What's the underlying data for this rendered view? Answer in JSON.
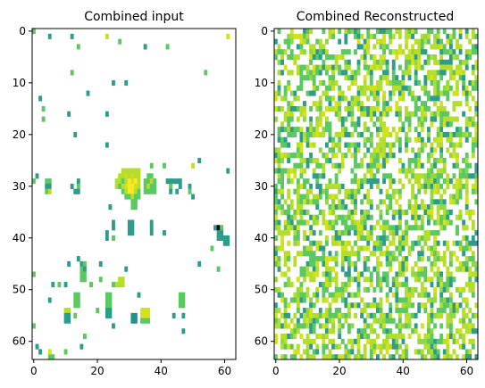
{
  "chart_data": [
    {
      "type": "heatmap",
      "title": "Combined input",
      "rows": 64,
      "cols": 64,
      "background": "#ffffff",
      "colormap": "viridis",
      "x_ticks": [
        0,
        20,
        40,
        60
      ],
      "y_ticks": [
        0,
        10,
        20,
        30,
        40,
        50,
        60
      ],
      "cells": [
        [
          0,
          0,
          "#5bc862"
        ],
        [
          5,
          1,
          "#2e9c8a"
        ],
        [
          12,
          1,
          "#2e9c8a"
        ],
        [
          23,
          1,
          "#c8dc2a"
        ],
        [
          27,
          2,
          "#5bc862"
        ],
        [
          14,
          3,
          "#5bc862"
        ],
        [
          35,
          3,
          "#2e9c8a"
        ],
        [
          42,
          3,
          "#5bc862"
        ],
        [
          61,
          1,
          "#d2e21b"
        ],
        [
          12,
          8,
          "#5bc862"
        ],
        [
          54,
          8,
          "#5bc862"
        ],
        [
          25,
          10,
          "#2e9c8a"
        ],
        [
          29,
          10,
          "#2e9c8a"
        ],
        [
          17,
          12,
          "#2e9c8a"
        ],
        [
          2,
          13,
          "#2e9c8a"
        ],
        [
          3,
          15,
          "#5bc862"
        ],
        [
          11,
          16,
          "#2e9c8a"
        ],
        [
          23,
          16,
          "#2e9c8a"
        ],
        [
          3,
          17,
          "#5bc862"
        ],
        [
          13,
          20,
          "#2e9c8a"
        ],
        [
          23,
          22,
          "#2e9c8a"
        ],
        [
          52,
          25,
          "#2e9c8a"
        ],
        [
          50,
          26,
          "#c8dc2a"
        ],
        [
          41,
          26,
          "#5bc862"
        ],
        [
          37,
          26,
          "#5bc862"
        ],
        [
          1,
          28,
          "#2e9c8a"
        ],
        [
          61,
          27,
          "#2e9c8a"
        ],
        [
          0,
          29,
          "#5bc862"
        ],
        [
          28,
          27,
          "#b5de2b"
        ],
        [
          29,
          27,
          "#b5de2b"
        ],
        [
          30,
          27,
          "#b5de2b"
        ],
        [
          31,
          27,
          "#b5de2b"
        ],
        [
          32,
          27,
          "#b5de2b"
        ],
        [
          33,
          27,
          "#b5de2b"
        ],
        [
          27,
          28,
          "#b5de2b"
        ],
        [
          28,
          28,
          "#b5de2b"
        ],
        [
          29,
          28,
          "#c8dc2a"
        ],
        [
          30,
          28,
          "#b5de2b"
        ],
        [
          31,
          28,
          "#c8dc2a"
        ],
        [
          32,
          28,
          "#b5de2b"
        ],
        [
          33,
          28,
          "#b5de2b"
        ],
        [
          36,
          28,
          "#5bc862"
        ],
        [
          37,
          28,
          "#5bc862"
        ],
        [
          26,
          29,
          "#b5de2b"
        ],
        [
          27,
          29,
          "#b5de2b"
        ],
        [
          28,
          29,
          "#5bc862"
        ],
        [
          29,
          29,
          "#b5de2b"
        ],
        [
          30,
          29,
          "#fde725"
        ],
        [
          31,
          29,
          "#d2e21b"
        ],
        [
          32,
          29,
          "#fde725"
        ],
        [
          33,
          29,
          "#b5de2b"
        ],
        [
          35,
          29,
          "#5bc862"
        ],
        [
          36,
          29,
          "#5bc862"
        ],
        [
          37,
          29,
          "#b5de2b"
        ],
        [
          38,
          29,
          "#5bc862"
        ],
        [
          26,
          30,
          "#b5de2b"
        ],
        [
          27,
          30,
          "#5bc862"
        ],
        [
          28,
          30,
          "#b5de2b"
        ],
        [
          29,
          30,
          "#d2e21b"
        ],
        [
          30,
          30,
          "#fde725"
        ],
        [
          31,
          30,
          "#fde725"
        ],
        [
          32,
          30,
          "#d2e21b"
        ],
        [
          33,
          30,
          "#b5de2b"
        ],
        [
          35,
          30,
          "#5bc862"
        ],
        [
          36,
          30,
          "#b5de2b"
        ],
        [
          37,
          30,
          "#5bc862"
        ],
        [
          38,
          30,
          "#5bc862"
        ],
        [
          42,
          29,
          "#2e9c8a"
        ],
        [
          43,
          29,
          "#2e9c8a"
        ],
        [
          44,
          29,
          "#2e9c8a"
        ],
        [
          45,
          29,
          "#2e9c8a"
        ],
        [
          46,
          29,
          "#2e9c8a"
        ],
        [
          4,
          29,
          "#5bc862"
        ],
        [
          5,
          29,
          "#5bc862"
        ],
        [
          4,
          30,
          "#2e9c8a"
        ],
        [
          5,
          30,
          "#2e9c8a"
        ],
        [
          4,
          31,
          "#5bc862"
        ],
        [
          5,
          31,
          "#b5de2b"
        ],
        [
          14,
          29,
          "#2e9c8a"
        ],
        [
          12,
          30,
          "#2e9c8a"
        ],
        [
          14,
          30,
          "#5bc862"
        ],
        [
          14,
          31,
          "#2e9c8a"
        ],
        [
          13,
          31,
          "#2e9c8a"
        ],
        [
          28,
          31,
          "#5bc862"
        ],
        [
          29,
          31,
          "#b5de2b"
        ],
        [
          30,
          31,
          "#fde725"
        ],
        [
          31,
          31,
          "#fde725"
        ],
        [
          32,
          31,
          "#b5de2b"
        ],
        [
          33,
          31,
          "#5bc862"
        ],
        [
          35,
          31,
          "#5bc862"
        ],
        [
          36,
          31,
          "#5bc862"
        ],
        [
          37,
          31,
          "#5bc862"
        ],
        [
          38,
          31,
          "#5bc862"
        ],
        [
          43,
          30,
          "#5bc862"
        ],
        [
          43,
          31,
          "#2e9c8a"
        ],
        [
          45,
          31,
          "#2e9c8a"
        ],
        [
          46,
          30,
          "#2e9c8a"
        ],
        [
          49,
          30,
          "#2e9c8a"
        ],
        [
          49,
          31,
          "#5bc862"
        ],
        [
          29,
          32,
          "#5bc862"
        ],
        [
          30,
          32,
          "#5bc862"
        ],
        [
          31,
          32,
          "#b5de2b"
        ],
        [
          32,
          32,
          "#5bc862"
        ],
        [
          33,
          32,
          "#5bc862"
        ],
        [
          31,
          33,
          "#5bc862"
        ],
        [
          32,
          33,
          "#5bc862"
        ],
        [
          31,
          34,
          "#5bc862"
        ],
        [
          32,
          34,
          "#5bc862"
        ],
        [
          50,
          32,
          "#2e9c8a"
        ],
        [
          24,
          34,
          "#2e9c8a"
        ],
        [
          57,
          38,
          "#2e9c8a"
        ],
        [
          58,
          38,
          "#000000"
        ],
        [
          59,
          38,
          "#5bc862"
        ],
        [
          58,
          39,
          "#2e9c8a"
        ],
        [
          59,
          39,
          "#2e9c8a"
        ],
        [
          58,
          40,
          "#2e9c8a"
        ],
        [
          59,
          40,
          "#2e9c8a"
        ],
        [
          60,
          40,
          "#2e9c8a"
        ],
        [
          61,
          40,
          "#2e9c8a"
        ],
        [
          60,
          41,
          "#2e9c8a"
        ],
        [
          61,
          41,
          "#2e9c8a"
        ],
        [
          56,
          42,
          "#5bc862"
        ],
        [
          30,
          37,
          "#2e9c8a"
        ],
        [
          31,
          37,
          "#2e9c8a"
        ],
        [
          30,
          38,
          "#2e9c8a"
        ],
        [
          31,
          38,
          "#2e9c8a"
        ],
        [
          30,
          39,
          "#2e9c8a"
        ],
        [
          31,
          39,
          "#2e9c8a"
        ],
        [
          25,
          37,
          "#2e9c8a"
        ],
        [
          25,
          38,
          "#2e9c8a"
        ],
        [
          23,
          39,
          "#2e9c8a"
        ],
        [
          25,
          40,
          "#5bc862"
        ],
        [
          37,
          37,
          "#2e9c8a"
        ],
        [
          37,
          38,
          "#2e9c8a"
        ],
        [
          37,
          39,
          "#2e9c8a"
        ],
        [
          41,
          39,
          "#2e9c8a"
        ],
        [
          23,
          40,
          "#2e9c8a"
        ],
        [
          14,
          44,
          "#2e9c8a"
        ],
        [
          15,
          45,
          "#2e9c8a"
        ],
        [
          16,
          45,
          "#5bc862"
        ],
        [
          15,
          46,
          "#5bc862"
        ],
        [
          16,
          46,
          "#2e9c8a"
        ],
        [
          15,
          47,
          "#5bc862"
        ],
        [
          16,
          47,
          "#5bc862"
        ],
        [
          15,
          48,
          "#5bc862"
        ],
        [
          16,
          48,
          "#5bc862"
        ],
        [
          52,
          45,
          "#2e9c8a"
        ],
        [
          11,
          45,
          "#2e9c8a"
        ],
        [
          21,
          45,
          "#2e9c8a"
        ],
        [
          29,
          46,
          "#2e9c8a"
        ],
        [
          0,
          47,
          "#5bc862"
        ],
        [
          58,
          46,
          "#5bc862"
        ],
        [
          27,
          48,
          "#b5de2b"
        ],
        [
          28,
          48,
          "#b5de2b"
        ],
        [
          26,
          49,
          "#b5de2b"
        ],
        [
          27,
          49,
          "#b5de2b"
        ],
        [
          28,
          49,
          "#b5de2b"
        ],
        [
          6,
          49,
          "#2e9c8a"
        ],
        [
          8,
          49,
          "#5bc862"
        ],
        [
          10,
          49,
          "#2e9c8a"
        ],
        [
          21,
          48,
          "#5bc862"
        ],
        [
          25,
          49,
          "#5bc862"
        ],
        [
          18,
          49,
          "#5bc862"
        ],
        [
          13,
          51,
          "#5bc862"
        ],
        [
          14,
          51,
          "#5bc862"
        ],
        [
          13,
          52,
          "#5bc862"
        ],
        [
          14,
          52,
          "#5bc862"
        ],
        [
          13,
          53,
          "#5bc862"
        ],
        [
          14,
          53,
          "#5bc862"
        ],
        [
          23,
          51,
          "#5bc862"
        ],
        [
          24,
          51,
          "#5bc862"
        ],
        [
          23,
          52,
          "#5bc862"
        ],
        [
          24,
          52,
          "#5bc862"
        ],
        [
          23,
          53,
          "#5bc862"
        ],
        [
          24,
          53,
          "#5bc862"
        ],
        [
          46,
          51,
          "#5bc862"
        ],
        [
          47,
          51,
          "#5bc862"
        ],
        [
          46,
          52,
          "#5bc862"
        ],
        [
          47,
          52,
          "#5bc862"
        ],
        [
          46,
          53,
          "#5bc862"
        ],
        [
          47,
          53,
          "#5bc862"
        ],
        [
          5,
          52,
          "#2e9c8a"
        ],
        [
          33,
          51,
          "#2e9c8a"
        ],
        [
          10,
          54,
          "#b5de2b"
        ],
        [
          11,
          54,
          "#b5de2b"
        ],
        [
          10,
          55,
          "#2e9c8a"
        ],
        [
          11,
          55,
          "#2e9c8a"
        ],
        [
          10,
          56,
          "#2e9c8a"
        ],
        [
          11,
          56,
          "#2e9c8a"
        ],
        [
          23,
          54,
          "#2e9c8a"
        ],
        [
          24,
          54,
          "#2e9c8a"
        ],
        [
          23,
          55,
          "#2e9c8a"
        ],
        [
          24,
          55,
          "#2e9c8a"
        ],
        [
          34,
          54,
          "#d2e21b"
        ],
        [
          35,
          54,
          "#d2e21b"
        ],
        [
          36,
          54,
          "#d2e21b"
        ],
        [
          34,
          55,
          "#d2e21b"
        ],
        [
          35,
          55,
          "#d2e21b"
        ],
        [
          36,
          55,
          "#d2e21b"
        ],
        [
          34,
          56,
          "#5bc862"
        ],
        [
          35,
          56,
          "#5bc862"
        ],
        [
          36,
          56,
          "#5bc862"
        ],
        [
          31,
          55,
          "#21918c"
        ],
        [
          32,
          55,
          "#21918c"
        ],
        [
          31,
          56,
          "#21918c"
        ],
        [
          32,
          56,
          "#21918c"
        ],
        [
          44,
          55,
          "#2e9c8a"
        ],
        [
          13,
          55,
          "#5bc862"
        ],
        [
          20,
          54,
          "#5bc862"
        ],
        [
          47,
          55,
          "#2e9c8a"
        ],
        [
          25,
          57,
          "#2e9c8a"
        ],
        [
          0,
          57,
          "#5bc862"
        ],
        [
          47,
          58,
          "#2e9c8a"
        ],
        [
          16,
          59,
          "#5bc862"
        ],
        [
          1,
          61,
          "#2e9c8a"
        ],
        [
          2,
          62,
          "#2e9c8a"
        ],
        [
          5,
          63,
          "#5bc862"
        ],
        [
          6,
          63,
          "#5bc862"
        ],
        [
          5,
          62,
          "#d2e21b"
        ],
        [
          10,
          62,
          "#5bc862"
        ],
        [
          15,
          61,
          "#2e9c8a"
        ]
      ]
    },
    {
      "type": "heatmap",
      "title": "Combined Reconstructed",
      "rows": 64,
      "cols": 64,
      "background": "#ffffff",
      "colormap": "viridis",
      "x_ticks": [
        0,
        20,
        40,
        60
      ],
      "y_ticks": [
        0,
        10,
        20,
        30,
        40,
        50,
        60
      ],
      "fill_fraction": 0.55,
      "palette": [
        "#b5de2b",
        "#5bc862",
        "#2e9c8a",
        "#d2e21b",
        "#8fd744"
      ],
      "palette_weights": [
        0.34,
        0.3,
        0.16,
        0.12,
        0.08
      ]
    }
  ]
}
